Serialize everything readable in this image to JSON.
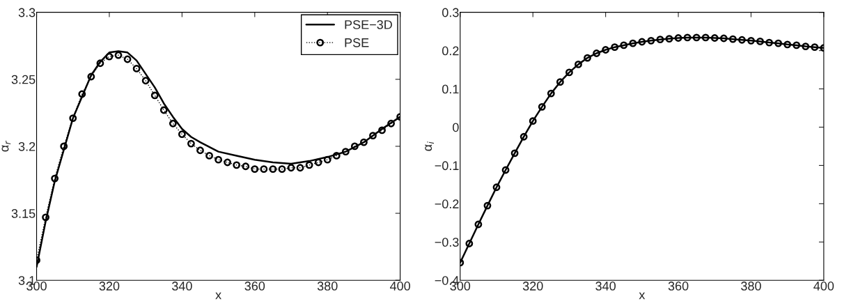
{
  "chart_data": [
    {
      "type": "line",
      "xlabel": "x",
      "ylabel": "α$_{r}$",
      "xlim": [
        300,
        400
      ],
      "ylim": [
        3.1,
        3.3
      ],
      "xticks": [
        300,
        320,
        340,
        360,
        380,
        400
      ],
      "yticks": [
        3.1,
        3.15,
        3.2,
        3.25,
        3.3
      ],
      "legend": "top right",
      "grid": false,
      "series": [
        {
          "name": "PSE−3D",
          "color": "#000000",
          "line_style": "solid",
          "marker": "none",
          "x": [
            300,
            302.5,
            305,
            310,
            315,
            317.5,
            320,
            322.5,
            325,
            327.5,
            330,
            332.5,
            335,
            337.5,
            340,
            342.5,
            345,
            350,
            355,
            360,
            365,
            370,
            375,
            380,
            385,
            390,
            395,
            400
          ],
          "values": [
            3.11,
            3.144,
            3.174,
            3.221,
            3.253,
            3.263,
            3.27,
            3.271,
            3.27,
            3.264,
            3.254,
            3.244,
            3.232,
            3.222,
            3.213,
            3.207,
            3.203,
            3.196,
            3.193,
            3.19,
            3.188,
            3.187,
            3.189,
            3.192,
            3.196,
            3.203,
            3.213,
            3.222
          ]
        },
        {
          "name": "PSE",
          "color": "#000000",
          "line_style": "dotted",
          "marker": "circle",
          "x": [
            300,
            302.5,
            305,
            307.5,
            310,
            312.5,
            315,
            317.5,
            320,
            322.5,
            325,
            327.5,
            330,
            332.5,
            335,
            337.5,
            340,
            342.5,
            345,
            347.5,
            350,
            352.5,
            355,
            357.5,
            360,
            362.5,
            365,
            367.5,
            370,
            372.5,
            375,
            377.5,
            380,
            382.5,
            385,
            387.5,
            390,
            392.5,
            395,
            397.5,
            400
          ],
          "values": [
            3.115,
            3.147,
            3.176,
            3.2,
            3.221,
            3.239,
            3.252,
            3.262,
            3.267,
            3.268,
            3.265,
            3.258,
            3.249,
            3.238,
            3.227,
            3.217,
            3.209,
            3.202,
            3.197,
            3.193,
            3.19,
            3.188,
            3.186,
            3.185,
            3.183,
            3.183,
            3.183,
            3.183,
            3.184,
            3.184,
            3.186,
            3.188,
            3.19,
            3.193,
            3.196,
            3.2,
            3.203,
            3.208,
            3.212,
            3.217,
            3.222
          ]
        }
      ]
    },
    {
      "type": "line",
      "xlabel": "x",
      "ylabel": "α$_{i}$",
      "xlim": [
        300,
        400
      ],
      "ylim": [
        -0.4,
        0.3
      ],
      "xticks": [
        300,
        320,
        340,
        360,
        380,
        400
      ],
      "yticks": [
        {
          "value": -0.4,
          "label": "−0.4"
        },
        {
          "value": -0.3,
          "label": "−0.3"
        },
        {
          "value": -0.2,
          "label": "−0.2"
        },
        {
          "value": -0.1,
          "label": "−0.1"
        },
        0,
        0.1,
        0.2,
        0.3
      ],
      "grid": false,
      "series": [
        {
          "color": "#000000",
          "line_style": "solid",
          "marker": "circle",
          "x": [
            300,
            302.5,
            305,
            307.5,
            310,
            312.5,
            315,
            317.5,
            320,
            322.5,
            325,
            327.5,
            330,
            332.5,
            335,
            337.5,
            340,
            342.5,
            345,
            347.5,
            350,
            352.5,
            355,
            357.5,
            360,
            362.5,
            365,
            367.5,
            370,
            372.5,
            375,
            377.5,
            380,
            382.5,
            385,
            387.5,
            390,
            392.5,
            395,
            397.5,
            400
          ],
          "values": [
            -0.354,
            -0.304,
            -0.254,
            -0.205,
            -0.157,
            -0.112,
            -0.068,
            -0.025,
            0.016,
            0.053,
            0.088,
            0.118,
            0.143,
            0.164,
            0.181,
            0.193,
            0.202,
            0.209,
            0.214,
            0.219,
            0.223,
            0.226,
            0.229,
            0.231,
            0.233,
            0.234,
            0.234,
            0.234,
            0.233,
            0.232,
            0.23,
            0.228,
            0.226,
            0.224,
            0.221,
            0.219,
            0.216,
            0.214,
            0.211,
            0.209,
            0.207
          ]
        }
      ]
    }
  ]
}
